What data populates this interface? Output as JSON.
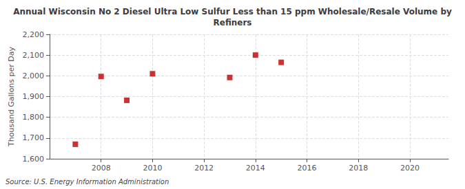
{
  "chart_data": {
    "type": "scatter",
    "title": "Annual Wisconsin No 2 Diesel Ultra Low Sulfur Less than 15 ppm Wholesale/Resale Volume by\nRefiners",
    "ylabel": "Thousand Gallons per Day",
    "source": "Source: U.S. Energy Information Administration",
    "x": [
      2007,
      2008,
      2009,
      2010,
      2013,
      2014,
      2015
    ],
    "values": [
      1670,
      1997,
      1882,
      2010,
      1992,
      2100,
      2065
    ],
    "color": "#bb0000",
    "marker": "square",
    "xlim": [
      2006.0,
      2021.5
    ],
    "ylim": [
      1600,
      2200
    ],
    "xticks": [
      2008,
      2010,
      2012,
      2014,
      2016,
      2018,
      2020
    ],
    "yticks": [
      {
        "value": 1600,
        "label": "1,600"
      },
      {
        "value": 1700,
        "label": "1,700"
      },
      {
        "value": 1800,
        "label": "1,800"
      },
      {
        "value": 1900,
        "label": "1,900"
      },
      {
        "value": 2000,
        "label": "2,000"
      },
      {
        "value": 2100,
        "label": "2,100"
      },
      {
        "value": 2200,
        "label": "2,200"
      }
    ],
    "grid": true
  }
}
